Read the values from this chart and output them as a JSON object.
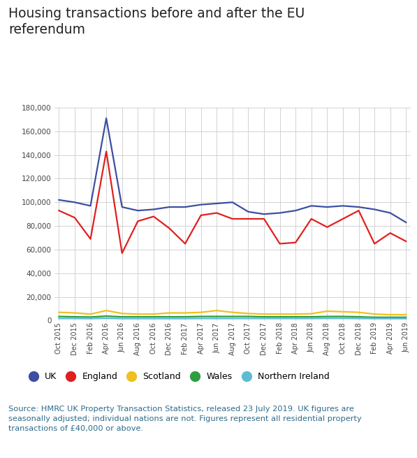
{
  "title": "Housing transactions before and after the EU\nreferendum",
  "title_color": "#222222",
  "source_text": "Source: HMRC UK Property Transaction Statistics, released 23 July 2019. UK figures are\nseasonally adjusted; individual nations are not. Figures represent all residential property\ntransactions of £40,000 or above.",
  "source_color": "#2e6b8a",
  "x_labels": [
    "Oct 2015",
    "Dec 2015",
    "Feb 2016",
    "Apr 2016",
    "Jun 2016",
    "Aug 2016",
    "Oct 2016",
    "Dec 2016",
    "Feb 2017",
    "Apr 2017",
    "Jun 2017",
    "Aug 2017",
    "Oct 2017",
    "Dec 2017",
    "Feb 2018",
    "Apr 2018",
    "Jun 2018",
    "Aug 2018",
    "Oct 2018",
    "Dec 2018",
    "Feb 2019",
    "Apr 2019",
    "Jun 2019"
  ],
  "UK": [
    102000,
    100000,
    97000,
    171000,
    96000,
    93000,
    94000,
    96000,
    96000,
    98000,
    99000,
    100000,
    92000,
    90000,
    91000,
    93000,
    97000,
    96000,
    97000,
    96000,
    94000,
    91000,
    83000
  ],
  "England": [
    93000,
    87000,
    69000,
    143000,
    57000,
    84000,
    88000,
    78000,
    65000,
    89000,
    91000,
    86000,
    86000,
    86000,
    65000,
    66000,
    86000,
    79000,
    86000,
    93000,
    65000,
    74000,
    67000
  ],
  "Scotland": [
    7000,
    6500,
    5500,
    8500,
    6000,
    5500,
    5500,
    6500,
    6500,
    7000,
    8500,
    7000,
    6000,
    5500,
    5500,
    5500,
    5800,
    8000,
    7500,
    7000,
    5500,
    5000,
    5000
  ],
  "Wales": [
    3500,
    3200,
    3000,
    3800,
    3200,
    3200,
    3200,
    3200,
    3200,
    3500,
    3500,
    3500,
    3500,
    3200,
    3200,
    3200,
    3200,
    3500,
    3500,
    3200,
    2800,
    2800,
    2800
  ],
  "NorthernIreland": [
    1800,
    1800,
    1700,
    2000,
    1700,
    1700,
    1700,
    1700,
    1700,
    1800,
    1800,
    1800,
    1800,
    1800,
    1800,
    1800,
    1800,
    1900,
    1900,
    1800,
    1700,
    1700,
    1700
  ],
  "colors": {
    "UK": "#3c4fa0",
    "England": "#e0201e",
    "Scotland": "#f0c020",
    "Wales": "#2e9e40",
    "NorthernIreland": "#5bbcd4"
  },
  "ylim": [
    0,
    180000
  ],
  "yticks": [
    0,
    20000,
    40000,
    60000,
    80000,
    100000,
    120000,
    140000,
    160000,
    180000
  ],
  "bg_color": "#ffffff",
  "grid_color": "#cccccc",
  "linewidth": 1.6
}
